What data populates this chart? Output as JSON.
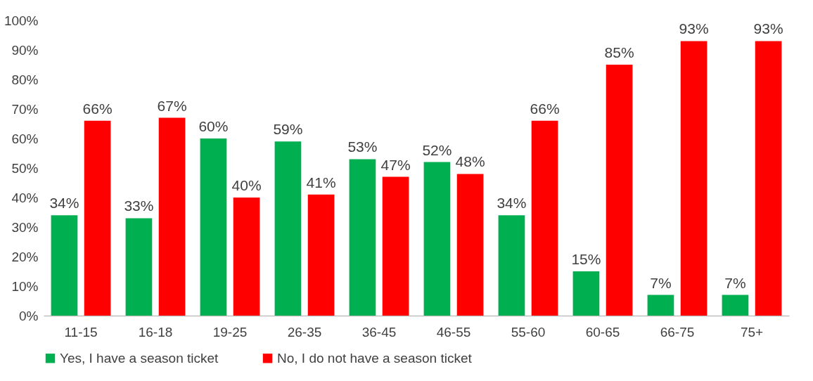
{
  "chart_data": {
    "type": "bar",
    "categories": [
      "11-15",
      "16-18",
      "19-25",
      "26-35",
      "36-45",
      "46-55",
      "55-60",
      "60-65",
      "66-75",
      "75+"
    ],
    "series": [
      {
        "name": "Yes, I have a season ticket",
        "color": "#00b050",
        "values": [
          34,
          33,
          60,
          59,
          53,
          52,
          34,
          15,
          7,
          7
        ],
        "value_labels": [
          "34%",
          "33%",
          "60%",
          "59%",
          "53%",
          "52%",
          "34%",
          "15%",
          "7%",
          "7%"
        ]
      },
      {
        "name": "No, I do not have a season ticket",
        "color": "#ff0000",
        "values": [
          66,
          67,
          40,
          41,
          47,
          48,
          66,
          85,
          93,
          93
        ],
        "value_labels": [
          "66%",
          "67%",
          "40%",
          "41%",
          "47%",
          "48%",
          "66%",
          "85%",
          "93%",
          "93%"
        ]
      }
    ],
    "ylim": [
      0,
      100
    ],
    "yticks": [
      {
        "value": 0,
        "label": "0%"
      },
      {
        "value": 10,
        "label": "10%"
      },
      {
        "value": 20,
        "label": "20%"
      },
      {
        "value": 30,
        "label": "30%"
      },
      {
        "value": 40,
        "label": "40%"
      },
      {
        "value": 50,
        "label": "50%"
      },
      {
        "value": 60,
        "label": "60%"
      },
      {
        "value": 70,
        "label": "70%"
      },
      {
        "value": 80,
        "label": "80%"
      },
      {
        "value": 90,
        "label": "90%"
      },
      {
        "value": 100,
        "label": "100%"
      }
    ],
    "grid": false,
    "legend": "bottom"
  }
}
